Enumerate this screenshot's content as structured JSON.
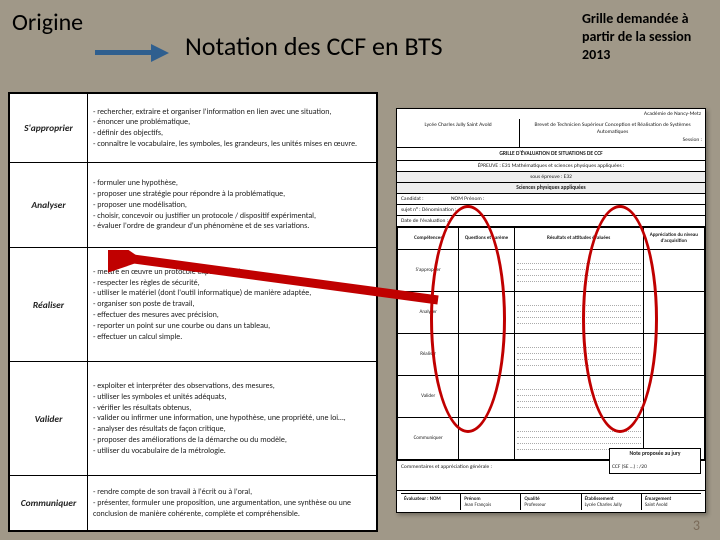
{
  "header": {
    "origine": "Origine",
    "title": "Notation des CCF en BTS",
    "note_right": "Grille demandée à partir de la session 2013"
  },
  "left_table": {
    "rows": [
      {
        "label": "S'approprier",
        "desc": "- rechercher, extraire et organiser l'information en lien avec une situation,\n- énoncer une problématique,\n- définir des objectifs,\n- connaître le vocabulaire, les symboles, les grandeurs, les unités mises en œuvre."
      },
      {
        "label": "Analyser",
        "desc": "- formuler une hypothèse,\n- proposer une stratégie pour répondre à la problématique,\n- proposer une modélisation,\n- choisir, concevoir ou justifier un protocole / dispositif expérimental,\n- évaluer l'ordre de grandeur d'un phénomène et de ses variations."
      },
      {
        "label": "Réaliser",
        "desc": "- mettre en œuvre un protocole expérimental,\n- respecter les règles de sécurité,\n- utiliser le matériel (dont l'outil informatique) de manière adaptée,\n- organiser son poste de travail,\n- effectuer des mesures avec précision,\n- reporter un point sur une courbe ou dans un tableau,\n- effectuer un calcul simple."
      },
      {
        "label": "Valider",
        "desc": "- exploiter et interpréter des observations, des mesures,\n- utiliser les symboles et unités adéquats,\n- vérifier les résultats obtenus,\n- valider ou infirmer une information, une hypothèse, une propriété, une loi…,\n- analyser des résultats de façon critique,\n- proposer des améliorations de la démarche ou du modèle,\n- utiliser du vocabulaire de la métrologie."
      },
      {
        "label": "Communiquer",
        "desc": "- rendre compte de son travail à l'écrit ou à l'oral,\n- présenter, formuler une proposition, une argumentation, une synthèse ou une conclusion de manière cohérente, complète et compréhensible."
      }
    ]
  },
  "right_doc": {
    "academie": "Académie de Nancy-Metz",
    "lycee": "Lycée\nCharles Jully\nSaint Avold",
    "diplome": "Brevet de Technicien Supérieur\nConception et Réalisation de Systèmes Automatiques",
    "session": "Session :",
    "title": "GRILLE D'ÉVALUATION DE SITUATIONS DE CCF",
    "epreuve": "ÉPREUVE : E31   Mathématiques et sciences physiques appliquées :",
    "sous_epreuve": "sous épreuve : E32",
    "matiere": "Sciences physiques appliquées",
    "candidat": "Candidat :",
    "nom_prenom": "NOM  Prénom :",
    "sujet": "sujet n° :  Dénomination :",
    "date": "Date de l'évaluation :",
    "grid_headers": [
      "Compétences",
      "Questions et barème",
      "Résultats et attitudes évaluées",
      "Appréciation du niveau d'acquisition"
    ],
    "grid_rows": [
      "S'approprier",
      "Analyser",
      "Réaliser",
      "Valider",
      "Communiquer"
    ],
    "commentaires": "Commentaires et appréciation générale :",
    "note_box_title": "Note proposée au jury",
    "note_box_line": "CCF (SE …) :       /20",
    "sign": [
      {
        "t": "Évaluateur : NOM",
        "b": ""
      },
      {
        "t": "Prénom",
        "b": "Jean François"
      },
      {
        "t": "Qualité",
        "b": "Professeur"
      },
      {
        "t": "Établissement",
        "b": "Lycée Charles Jully"
      },
      {
        "t": "Émargement",
        "b": "Saint Avold"
      }
    ]
  },
  "slide_number": "3",
  "colors": {
    "bg": "#a09888",
    "blue_arrow": "#2f5f8f",
    "red": "#c00000"
  }
}
